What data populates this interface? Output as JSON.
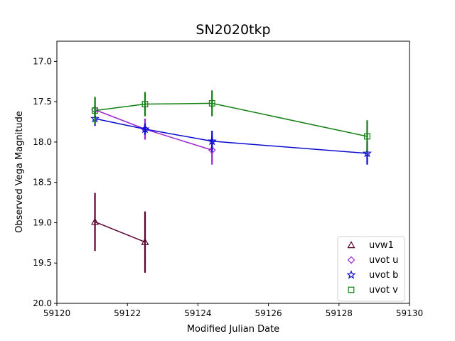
{
  "chart_data": {
    "type": "scatter",
    "title": "SN2020tkp",
    "xlabel": "Modified Julian Date",
    "ylabel": "Observed Vega Magnitude",
    "xlim": [
      59120,
      59130
    ],
    "ylim": [
      20.0,
      16.75
    ],
    "y_inverted": true,
    "grid": false,
    "legend_position": "lower-right",
    "xticks": [
      59120,
      59122,
      59124,
      59126,
      59128,
      59130
    ],
    "xtick_labels": [
      "59120",
      "59122",
      "59124",
      "59126",
      "59128",
      "59130"
    ],
    "yticks": [
      17.0,
      17.5,
      18.0,
      18.5,
      19.0,
      19.5,
      20.0
    ],
    "ytick_labels": [
      "17.0",
      "17.5",
      "18.0",
      "18.5",
      "19.0",
      "19.5",
      "20.0"
    ],
    "series": [
      {
        "name": "uvw1",
        "marker": "triangle",
        "color": "#5c0030",
        "x": [
          59121.08,
          59122.5
        ],
        "y": [
          18.99,
          19.24
        ],
        "yerr": [
          0.36,
          0.38
        ]
      },
      {
        "name": "uvot u",
        "marker": "diamond",
        "color": "#9c27d0",
        "x": [
          59121.08,
          59122.5,
          59124.4
        ],
        "y": [
          17.6,
          17.84,
          18.1
        ],
        "yerr": [
          0.15,
          0.13,
          0.18
        ]
      },
      {
        "name": "uvot b",
        "marker": "star",
        "color": "#0b0bd0",
        "x": [
          59121.08,
          59122.5,
          59124.4,
          59128.8
        ],
        "y": [
          17.71,
          17.84,
          17.99,
          18.14
        ],
        "yerr": [
          0.09,
          0.07,
          0.13,
          0.14
        ]
      },
      {
        "name": "uvot v",
        "marker": "square",
        "color": "#118011",
        "x": [
          59121.08,
          59122.5,
          59124.4,
          59128.8
        ],
        "y": [
          17.61,
          17.53,
          17.52,
          17.93
        ],
        "yerr": [
          0.17,
          0.15,
          0.16,
          0.2
        ]
      }
    ]
  }
}
